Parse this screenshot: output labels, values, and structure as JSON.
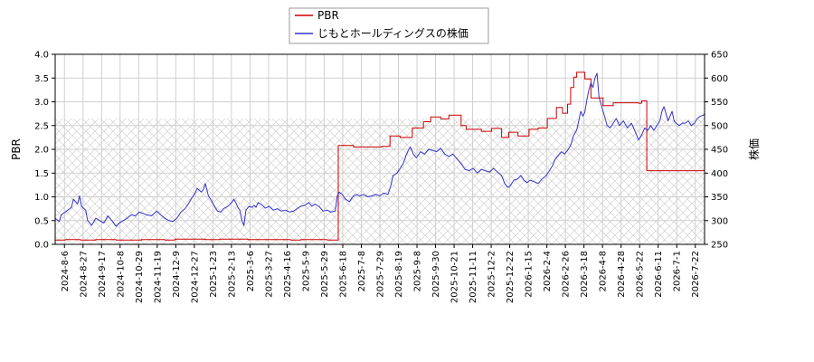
{
  "chart_data": {
    "type": "line",
    "x_ticks": [
      "2024-8-6",
      "2024-8-27",
      "2024-9-17",
      "2024-10-8",
      "2024-10-29",
      "2024-11-19",
      "2024-12-9",
      "2024-12-27",
      "2025-1-23",
      "2025-2-13",
      "2025-3-6",
      "2025-3-27",
      "2025-4-16",
      "2025-5-9",
      "2025-5-29",
      "2025-6-18",
      "2025-7-8",
      "2025-7-29",
      "2025-8-19",
      "2025-9-8",
      "2025-9-30",
      "2025-10-21",
      "2025-11-11",
      "2025-12-2",
      "2025-12-22",
      "2026-1-15",
      "2026-2-4",
      "2026-2-26",
      "2026-3-18",
      "2026-4-8",
      "2026-4-28",
      "2026-5-22",
      "2026-6-11",
      "2026-7-1",
      "2026-7-22"
    ],
    "y_left": {
      "label": "PBR",
      "ticks": [
        "0.0",
        "0.5",
        "1.0",
        "1.5",
        "2.0",
        "2.5",
        "3.0",
        "3.5",
        "4.0"
      ],
      "range": [
        0,
        4
      ]
    },
    "y_right": {
      "label": "株価",
      "ticks": [
        "250",
        "300",
        "350",
        "400",
        "450",
        "500",
        "550",
        "600",
        "650"
      ],
      "range": [
        250,
        650
      ]
    },
    "grid": true,
    "hatched_region": {
      "pbr_from": 0,
      "pbr_to": 2.65
    },
    "legend": {
      "placement": "top-center"
    },
    "series": [
      {
        "name": "PBR",
        "axis": "left",
        "color": "#cc0000",
        "points": [
          [
            0,
            0.09
          ],
          [
            10,
            0.09
          ],
          [
            10,
            0.1
          ],
          [
            25,
            0.1
          ],
          [
            25,
            0.09
          ],
          [
            40,
            0.09
          ],
          [
            40,
            0.1
          ],
          [
            60,
            0.1
          ],
          [
            60,
            0.09
          ],
          [
            85,
            0.09
          ],
          [
            85,
            0.1
          ],
          [
            108,
            0.1
          ],
          [
            108,
            0.09
          ],
          [
            118,
            0.09
          ],
          [
            118,
            0.11
          ],
          [
            148,
            0.11
          ],
          [
            148,
            0.1
          ],
          [
            162,
            0.1
          ],
          [
            162,
            0.11
          ],
          [
            190,
            0.11
          ],
          [
            190,
            0.1
          ],
          [
            232,
            0.1
          ],
          [
            232,
            0.09
          ],
          [
            242,
            0.09
          ],
          [
            242,
            0.1
          ],
          [
            268,
            0.1
          ],
          [
            268,
            0.09
          ],
          [
            279,
            0.09
          ],
          [
            279,
            2.08
          ],
          [
            294,
            2.08
          ],
          [
            294,
            2.05
          ],
          [
            322,
            2.05
          ],
          [
            322,
            2.06
          ],
          [
            330,
            2.06
          ],
          [
            330,
            2.28
          ],
          [
            340,
            2.28
          ],
          [
            340,
            2.25
          ],
          [
            352,
            2.25
          ],
          [
            352,
            2.45
          ],
          [
            363,
            2.45
          ],
          [
            363,
            2.58
          ],
          [
            370,
            2.58
          ],
          [
            370,
            2.68
          ],
          [
            380,
            2.68
          ],
          [
            380,
            2.64
          ],
          [
            388,
            2.64
          ],
          [
            388,
            2.72
          ],
          [
            400,
            2.72
          ],
          [
            400,
            2.5
          ],
          [
            405,
            2.5
          ],
          [
            405,
            2.42
          ],
          [
            420,
            2.42
          ],
          [
            420,
            2.38
          ],
          [
            430,
            2.38
          ],
          [
            430,
            2.44
          ],
          [
            440,
            2.44
          ],
          [
            440,
            2.25
          ],
          [
            447,
            2.25
          ],
          [
            447,
            2.36
          ],
          [
            456,
            2.36
          ],
          [
            456,
            2.28
          ],
          [
            467,
            2.28
          ],
          [
            467,
            2.42
          ],
          [
            476,
            2.42
          ],
          [
            476,
            2.45
          ],
          [
            485,
            2.45
          ],
          [
            485,
            2.65
          ],
          [
            494,
            2.65
          ],
          [
            494,
            2.88
          ],
          [
            500,
            2.88
          ],
          [
            500,
            2.76
          ],
          [
            505,
            2.76
          ],
          [
            505,
            2.95
          ],
          [
            508,
            2.95
          ],
          [
            508,
            3.3
          ],
          [
            511,
            3.3
          ],
          [
            511,
            3.52
          ],
          [
            514,
            3.52
          ],
          [
            514,
            3.62
          ],
          [
            522,
            3.62
          ],
          [
            522,
            3.48
          ],
          [
            528,
            3.48
          ],
          [
            528,
            3.08
          ],
          [
            540,
            3.08
          ],
          [
            540,
            2.92
          ],
          [
            550,
            2.92
          ],
          [
            550,
            2.98
          ],
          [
            575,
            2.98
          ],
          [
            575,
            2.97
          ],
          [
            578,
            2.97
          ],
          [
            578,
            3.02
          ],
          [
            583,
            3.02
          ],
          [
            583,
            1.55
          ],
          [
            640,
            1.55
          ]
        ]
      },
      {
        "name": "じもとホールディングスの株価",
        "axis": "right",
        "color": "#3333cc",
        "points": [
          [
            0,
            305
          ],
          [
            4,
            298
          ],
          [
            6,
            312
          ],
          [
            10,
            318
          ],
          [
            16,
            328
          ],
          [
            18,
            345
          ],
          [
            22,
            335
          ],
          [
            24,
            352
          ],
          [
            26,
            330
          ],
          [
            30,
            322
          ],
          [
            32,
            300
          ],
          [
            36,
            290
          ],
          [
            40,
            305
          ],
          [
            44,
            300
          ],
          [
            48,
            295
          ],
          [
            52,
            310
          ],
          [
            56,
            300
          ],
          [
            60,
            288
          ],
          [
            63,
            295
          ],
          [
            67,
            300
          ],
          [
            71,
            305
          ],
          [
            75,
            312
          ],
          [
            79,
            310
          ],
          [
            83,
            318
          ],
          [
            87,
            315
          ],
          [
            90,
            312
          ],
          [
            95,
            310
          ],
          [
            100,
            320
          ],
          [
            104,
            312
          ],
          [
            108,
            305
          ],
          [
            112,
            300
          ],
          [
            116,
            298
          ],
          [
            120,
            305
          ],
          [
            124,
            318
          ],
          [
            128,
            325
          ],
          [
            132,
            338
          ],
          [
            136,
            352
          ],
          [
            138,
            358
          ],
          [
            140,
            368
          ],
          [
            144,
            360
          ],
          [
            146,
            365
          ],
          [
            148,
            378
          ],
          [
            151,
            352
          ],
          [
            154,
            342
          ],
          [
            157,
            330
          ],
          [
            160,
            320
          ],
          [
            163,
            318
          ],
          [
            166,
            325
          ],
          [
            170,
            330
          ],
          [
            174,
            338
          ],
          [
            176,
            345
          ],
          [
            178,
            338
          ],
          [
            180,
            328
          ],
          [
            182,
            322
          ],
          [
            184,
            300
          ],
          [
            186,
            290
          ],
          [
            188,
            322
          ],
          [
            191,
            330
          ],
          [
            194,
            328
          ],
          [
            196,
            332
          ],
          [
            198,
            328
          ],
          [
            200,
            338
          ],
          [
            204,
            333
          ],
          [
            207,
            326
          ],
          [
            211,
            330
          ],
          [
            215,
            322
          ],
          [
            219,
            325
          ],
          [
            223,
            320
          ],
          [
            227,
            322
          ],
          [
            231,
            318
          ],
          [
            235,
            320
          ],
          [
            239,
            326
          ],
          [
            242,
            330
          ],
          [
            246,
            332
          ],
          [
            250,
            338
          ],
          [
            253,
            330
          ],
          [
            256,
            335
          ],
          [
            260,
            330
          ],
          [
            264,
            320
          ],
          [
            268,
            322
          ],
          [
            272,
            318
          ],
          [
            276,
            320
          ],
          [
            278,
            352
          ],
          [
            280,
            360
          ],
          [
            283,
            355
          ],
          [
            286,
            345
          ],
          [
            290,
            340
          ],
          [
            294,
            352
          ],
          [
            297,
            355
          ],
          [
            300,
            352
          ],
          [
            304,
            355
          ],
          [
            308,
            350
          ],
          [
            312,
            352
          ],
          [
            316,
            355
          ],
          [
            320,
            352
          ],
          [
            324,
            358
          ],
          [
            328,
            355
          ],
          [
            331,
            375
          ],
          [
            333,
            395
          ],
          [
            337,
            400
          ],
          [
            340,
            410
          ],
          [
            343,
            420
          ],
          [
            346,
            438
          ],
          [
            348,
            448
          ],
          [
            350,
            455
          ],
          [
            353,
            440
          ],
          [
            356,
            432
          ],
          [
            360,
            445
          ],
          [
            364,
            440
          ],
          [
            368,
            450
          ],
          [
            372,
            448
          ],
          [
            376,
            445
          ],
          [
            380,
            452
          ],
          [
            384,
            440
          ],
          [
            388,
            435
          ],
          [
            392,
            440
          ],
          [
            396,
            430
          ],
          [
            400,
            420
          ],
          [
            404,
            408
          ],
          [
            408,
            405
          ],
          [
            412,
            410
          ],
          [
            416,
            400
          ],
          [
            420,
            408
          ],
          [
            424,
            405
          ],
          [
            428,
            402
          ],
          [
            432,
            410
          ],
          [
            436,
            402
          ],
          [
            440,
            395
          ],
          [
            443,
            378
          ],
          [
            446,
            370
          ],
          [
            448,
            372
          ],
          [
            452,
            385
          ],
          [
            456,
            388
          ],
          [
            459,
            395
          ],
          [
            462,
            385
          ],
          [
            465,
            380
          ],
          [
            468,
            385
          ],
          [
            472,
            382
          ],
          [
            476,
            378
          ],
          [
            480,
            388
          ],
          [
            484,
            395
          ],
          [
            487,
            405
          ],
          [
            490,
            415
          ],
          [
            493,
            430
          ],
          [
            496,
            438
          ],
          [
            499,
            445
          ],
          [
            502,
            440
          ],
          [
            505,
            448
          ],
          [
            508,
            458
          ],
          [
            511,
            480
          ],
          [
            514,
            490
          ],
          [
            516,
            510
          ],
          [
            518,
            530
          ],
          [
            520,
            520
          ],
          [
            522,
            528
          ],
          [
            524,
            555
          ],
          [
            526,
            575
          ],
          [
            528,
            590
          ],
          [
            530,
            580
          ],
          [
            532,
            600
          ],
          [
            534,
            610
          ],
          [
            536,
            560
          ],
          [
            538,
            545
          ],
          [
            540,
            530
          ],
          [
            542,
            515
          ],
          [
            544,
            500
          ],
          [
            547,
            495
          ],
          [
            550,
            505
          ],
          [
            553,
            515
          ],
          [
            556,
            500
          ],
          [
            560,
            510
          ],
          [
            564,
            495
          ],
          [
            568,
            505
          ],
          [
            572,
            485
          ],
          [
            575,
            470
          ],
          [
            578,
            480
          ],
          [
            581,
            495
          ],
          [
            584,
            490
          ],
          [
            587,
            500
          ],
          [
            590,
            490
          ],
          [
            593,
            500
          ],
          [
            596,
            510
          ],
          [
            598,
            530
          ],
          [
            600,
            540
          ],
          [
            602,
            525
          ],
          [
            604,
            510
          ],
          [
            606,
            520
          ],
          [
            608,
            530
          ],
          [
            610,
            510
          ],
          [
            612,
            505
          ],
          [
            615,
            500
          ],
          [
            618,
            505
          ],
          [
            621,
            505
          ],
          [
            624,
            510
          ],
          [
            627,
            500
          ],
          [
            630,
            505
          ],
          [
            633,
            515
          ],
          [
            636,
            520
          ],
          [
            639,
            522
          ],
          [
            640,
            525
          ]
        ]
      }
    ]
  }
}
